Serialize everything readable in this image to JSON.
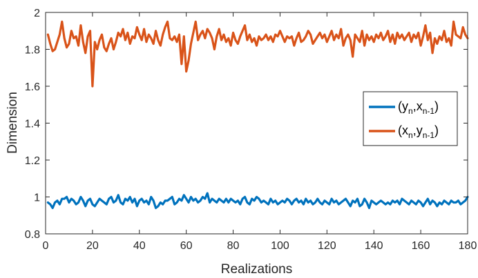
{
  "chart_data": {
    "type": "line",
    "xlabel": "Realizations",
    "ylabel": "Dimension",
    "xlim": [
      0,
      180
    ],
    "ylim": [
      0.8,
      2.0
    ],
    "x_ticks": [
      0,
      20,
      40,
      60,
      80,
      100,
      120,
      140,
      160,
      180
    ],
    "y_ticks": [
      0.8,
      1,
      1.2,
      1.4,
      1.6,
      1.8,
      2
    ],
    "y_tick_labels": [
      "0.8",
      "1",
      "1.2",
      "1.4",
      "1.6",
      "1.8",
      "2"
    ],
    "grid": false,
    "legend_position": "right",
    "x_start": 1,
    "series": [
      {
        "name": "(y_n,x_n-1)",
        "name_parts": [
          "(y",
          "n",
          ",x",
          "n-1",
          ")"
        ],
        "color": "#0072BD",
        "values": [
          0.97,
          0.96,
          0.94,
          0.97,
          0.98,
          0.96,
          0.99,
          0.99,
          1.0,
          0.97,
          0.99,
          0.98,
          0.96,
          0.97,
          1.0,
          0.98,
          0.95,
          0.98,
          0.99,
          0.96,
          0.95,
          0.97,
          0.99,
          0.98,
          0.97,
          0.96,
          0.99,
          1.0,
          0.97,
          0.98,
          1.01,
          0.97,
          0.96,
          0.99,
          0.98,
          1.0,
          0.97,
          0.99,
          0.95,
          0.98,
          0.99,
          0.97,
          0.98,
          0.96,
          1.0,
          0.98,
          0.94,
          0.95,
          0.97,
          0.96,
          0.98,
          0.98,
          0.99,
          1.0,
          0.96,
          0.97,
          0.99,
          0.98,
          1.01,
          0.99,
          0.97,
          1.0,
          0.98,
          0.99,
          0.97,
          0.98,
          1.0,
          0.99,
          1.02,
          0.97,
          0.99,
          0.98,
          0.97,
          0.99,
          0.98,
          0.97,
          0.99,
          0.97,
          0.99,
          0.98,
          0.97,
          0.98,
          0.96,
          0.99,
          1.0,
          0.97,
          0.96,
          0.99,
          0.98,
          1.0,
          0.99,
          0.97,
          0.98,
          0.97,
          0.96,
          0.99,
          0.97,
          0.98,
          0.96,
          0.97,
          0.98,
          0.97,
          0.99,
          0.98,
          0.96,
          0.98,
          0.99,
          0.97,
          0.98,
          0.96,
          0.99,
          0.97,
          0.98,
          0.96,
          0.97,
          0.99,
          0.97,
          0.96,
          0.98,
          0.97,
          0.96,
          0.99,
          0.97,
          0.98,
          0.96,
          0.97,
          0.98,
          0.99,
          0.97,
          0.95,
          0.98,
          0.97,
          0.99,
          0.95,
          0.96,
          0.99,
          0.97,
          0.94,
          0.98,
          0.97,
          0.96,
          0.97,
          0.98,
          0.97,
          0.96,
          0.97,
          0.96,
          0.98,
          0.97,
          0.98,
          0.96,
          0.99,
          0.98,
          0.97,
          0.96,
          0.98,
          0.97,
          0.96,
          0.98,
          0.97,
          0.95,
          0.97,
          0.99,
          0.96,
          0.98,
          0.97,
          0.95,
          0.97,
          0.96,
          0.98,
          0.97,
          0.96,
          0.98,
          0.97,
          0.97,
          0.98,
          0.96,
          0.97,
          0.98,
          1.0
        ]
      },
      {
        "name": "(x_n,y_n-1)",
        "name_parts": [
          "(x",
          "n",
          ",y",
          "n-1",
          ")"
        ],
        "color": "#D95319",
        "values": [
          1.88,
          1.83,
          1.79,
          1.8,
          1.84,
          1.88,
          1.95,
          1.86,
          1.81,
          1.83,
          1.9,
          1.86,
          1.87,
          1.82,
          1.93,
          1.84,
          1.78,
          1.87,
          1.9,
          1.6,
          1.84,
          1.8,
          1.85,
          1.88,
          1.81,
          1.79,
          1.83,
          1.86,
          1.8,
          1.84,
          1.89,
          1.87,
          1.91,
          1.85,
          1.89,
          1.83,
          1.87,
          1.86,
          1.92,
          1.88,
          1.85,
          1.91,
          1.84,
          1.88,
          1.86,
          1.83,
          1.9,
          1.85,
          1.82,
          1.88,
          1.92,
          1.95,
          1.86,
          1.85,
          1.87,
          1.84,
          1.88,
          1.72,
          1.87,
          1.68,
          1.74,
          1.83,
          1.89,
          1.95,
          1.85,
          1.88,
          1.9,
          1.86,
          1.91,
          1.89,
          1.86,
          1.8,
          1.87,
          1.91,
          1.85,
          1.88,
          1.84,
          1.86,
          1.82,
          1.89,
          1.85,
          1.83,
          1.87,
          1.9,
          1.93,
          1.85,
          1.88,
          1.84,
          1.86,
          1.82,
          1.87,
          1.85,
          1.86,
          1.88,
          1.85,
          1.87,
          1.84,
          1.88,
          1.87,
          1.9,
          1.87,
          1.84,
          1.87,
          1.86,
          1.87,
          1.82,
          1.86,
          1.89,
          1.84,
          1.85,
          1.87,
          1.9,
          1.88,
          1.83,
          1.85,
          1.87,
          1.89,
          1.86,
          1.88,
          1.84,
          1.87,
          1.9,
          1.85,
          1.88,
          1.86,
          1.91,
          1.82,
          1.86,
          1.88,
          1.85,
          1.76,
          1.88,
          1.86,
          1.84,
          1.9,
          1.82,
          1.88,
          1.85,
          1.87,
          1.84,
          1.88,
          1.86,
          1.89,
          1.85,
          1.87,
          1.9,
          1.84,
          1.88,
          1.83,
          1.89,
          1.86,
          1.88,
          1.85,
          1.87,
          1.89,
          1.84,
          1.88,
          1.86,
          1.89,
          1.82,
          1.87,
          1.93,
          1.85,
          1.89,
          1.78,
          1.86,
          1.83,
          1.87,
          1.85,
          1.9,
          1.84,
          1.86,
          1.82,
          1.95,
          1.88,
          1.87,
          1.86,
          1.92,
          1.88,
          1.86
        ]
      }
    ]
  }
}
